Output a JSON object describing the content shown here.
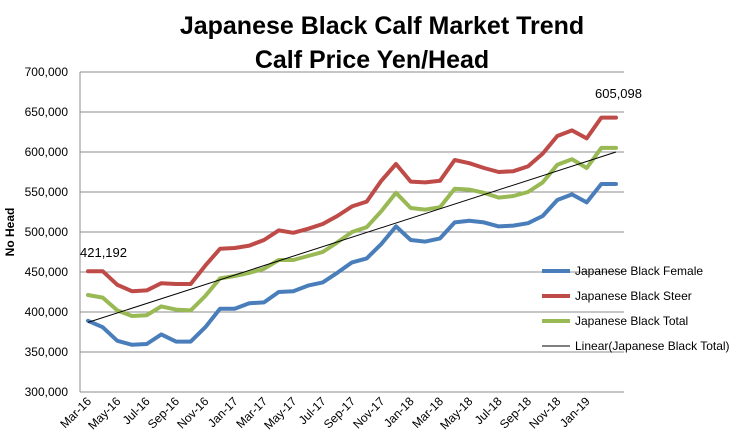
{
  "chart_data": {
    "type": "line",
    "title_line1": "Japanese Black Calf Market Trend",
    "title_line2": "Calf Price Yen/Head",
    "xlabel": "",
    "ylabel": "No Head",
    "ylim": [
      300000,
      700000
    ],
    "yticks": [
      300000,
      350000,
      400000,
      450000,
      500000,
      550000,
      600000,
      650000,
      700000
    ],
    "ytick_labels": [
      "300,000",
      "350,000",
      "400,000",
      "450,000",
      "500,000",
      "550,000",
      "600,000",
      "650,000",
      "700,000"
    ],
    "x_labels": [
      "Mar-16",
      "May-16",
      "Jul-16",
      "Sep-16",
      "Nov-16",
      "Jan-17",
      "Mar-17",
      "May-17",
      "Jul-17",
      "Sep-17",
      "Nov-17",
      "Jan-18",
      "Mar-18",
      "May-18",
      "Jul-18",
      "Sep-18",
      "Nov-18",
      "Jan-19"
    ],
    "categories": [
      "Mar-16",
      "Apr-16",
      "May-16",
      "Jun-16",
      "Jul-16",
      "Aug-16",
      "Sep-16",
      "Oct-16",
      "Nov-16",
      "Dec-16",
      "Jan-17",
      "Feb-17",
      "Mar-17",
      "Apr-17",
      "May-17",
      "Jun-17",
      "Jul-17",
      "Aug-17",
      "Sep-17",
      "Oct-17",
      "Nov-17",
      "Dec-17",
      "Jan-18",
      "Feb-18",
      "Mar-18",
      "Apr-18",
      "May-18",
      "Jun-18",
      "Jul-18",
      "Aug-18",
      "Sep-18",
      "Oct-18",
      "Nov-18",
      "Dec-18",
      "Jan-19",
      "Feb-19",
      "Mar-19"
    ],
    "series": [
      {
        "name": "Japanese Black Female",
        "color": "#4a7ebb",
        "values": [
          389000,
          381000,
          364000,
          359000,
          360000,
          372000,
          363000,
          363000,
          381000,
          404000,
          404000,
          411000,
          412000,
          425000,
          426000,
          433000,
          437000,
          449000,
          462000,
          467000,
          485000,
          507000,
          490000,
          488000,
          492000,
          512000,
          514000,
          512000,
          507000,
          508000,
          511000,
          520000,
          540000,
          547000,
          537000,
          560000,
          560000
        ]
      },
      {
        "name": "Japanese Black Steer",
        "color": "#be4b48",
        "values": [
          451000,
          451000,
          434000,
          426000,
          427000,
          436000,
          435000,
          435000,
          458000,
          479000,
          480000,
          483000,
          490000,
          502000,
          499000,
          504000,
          510000,
          520000,
          532000,
          538000,
          564000,
          585000,
          563000,
          562000,
          564000,
          590000,
          586000,
          580000,
          575000,
          576000,
          582000,
          598000,
          620000,
          627000,
          617000,
          643000,
          643000
        ]
      },
      {
        "name": "Japanese Black Total",
        "color": "#98b954",
        "values": [
          421192,
          418000,
          402000,
          395000,
          396000,
          407000,
          403000,
          402000,
          420000,
          442000,
          445000,
          449000,
          454000,
          465000,
          465000,
          470000,
          475000,
          487000,
          500000,
          506000,
          526000,
          549000,
          530000,
          528000,
          531000,
          554000,
          553000,
          549000,
          543000,
          545000,
          550000,
          562000,
          584000,
          591000,
          580000,
          605098,
          605098
        ]
      }
    ],
    "trendline": {
      "name": "Linear(Japanese Black Total)",
      "color": "#000000",
      "start": 387000,
      "end": 600000
    },
    "annotations": {
      "first_total": "421,192",
      "last_total": "605,098"
    },
    "legend_position": "right"
  }
}
